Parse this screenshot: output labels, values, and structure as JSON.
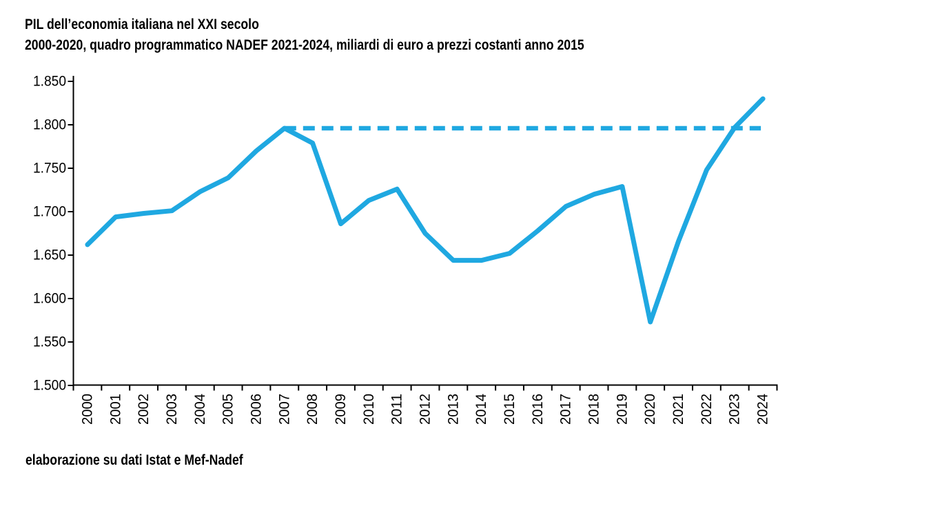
{
  "title": {
    "line1": "PIL dell’economia italiana nel XXI secolo",
    "line2": "2000-2020, quadro programmatico NADEF 2021-2024, miliardi di euro a prezzi costanti anno 2015"
  },
  "footer": {
    "text": "elaborazione su dati Istat e Mef-Nadef"
  },
  "chart_data": {
    "type": "line",
    "title": "PIL dell’economia italiana nel XXI secolo",
    "subtitle": "2000-2020, quadro programmatico NADEF 2021-2024, miliardi di euro a prezzi costanti anno 2015",
    "xlabel": "",
    "ylabel": "miliardi di euro a prezzi costanti anno 2015",
    "x": [
      2000,
      2001,
      2002,
      2003,
      2004,
      2005,
      2006,
      2007,
      2008,
      2009,
      2010,
      2011,
      2012,
      2013,
      2014,
      2015,
      2016,
      2017,
      2018,
      2019,
      2020,
      2021,
      2022,
      2023,
      2024
    ],
    "series": [
      {
        "name": "PIL",
        "values": [
          1662,
          1694,
          1698,
          1701,
          1723,
          1739,
          1770,
          1796,
          1779,
          1686,
          1713,
          1726,
          1675,
          1644,
          1644,
          1652,
          1678,
          1706,
          1720,
          1729,
          1573,
          1666,
          1748,
          1797,
          1830
        ]
      }
    ],
    "baseline": {
      "value": 1796,
      "from_x": 2007,
      "to_x": 2024,
      "style": "dashed"
    },
    "ylim": [
      1500,
      1850
    ],
    "y_ticks": [
      {
        "v": 1850,
        "label": "1.850"
      },
      {
        "v": 1800,
        "label": "1.800"
      },
      {
        "v": 1750,
        "label": "1.750"
      },
      {
        "v": 1700,
        "label": "1.700"
      },
      {
        "v": 1650,
        "label": "1.650"
      },
      {
        "v": 1600,
        "label": "1.600"
      },
      {
        "v": 1550,
        "label": "1.550"
      },
      {
        "v": 1500,
        "label": "1.500"
      }
    ],
    "grid": false,
    "legend": "none",
    "colors": {
      "line": "#1FA8E1",
      "axis": "#000000",
      "background": "#FFFFFF"
    }
  }
}
